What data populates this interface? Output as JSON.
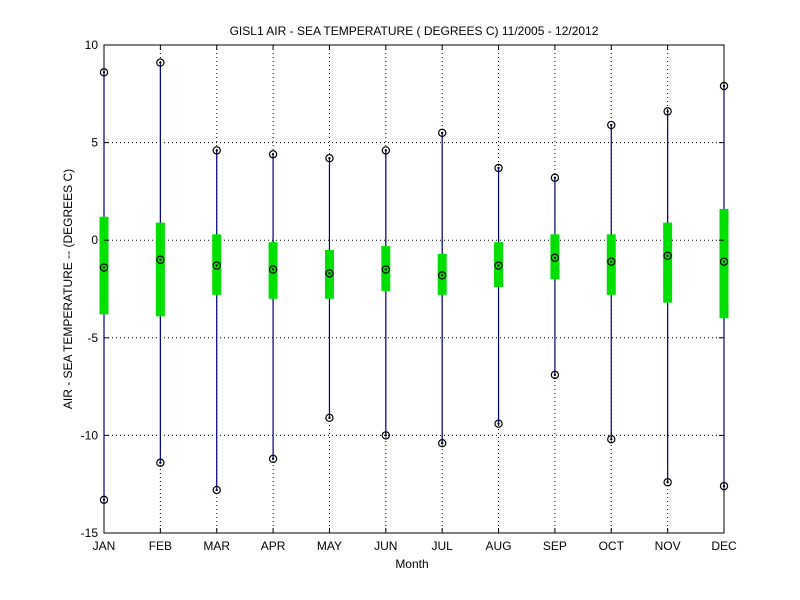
{
  "chart_data": {
    "type": "box",
    "title": "GISL1  AIR - SEA TEMPERATURE ( DEGREES C) 11/2005 - 12/2012",
    "xlabel": "Month",
    "ylabel": "AIR - SEA TEMPERATURE -- (DEGREES C)",
    "ylim": [
      -15,
      10
    ],
    "yticks": [
      "10",
      "5",
      "0",
      "-5",
      "-10",
      "-15"
    ],
    "ytick_values": [
      10,
      5,
      0,
      -5,
      -10,
      -15
    ],
    "grid": true,
    "categories": [
      "JAN",
      "FEB",
      "MAR",
      "APR",
      "MAY",
      "JUN",
      "JUL",
      "AUG",
      "SEP",
      "OCT",
      "NOV",
      "DEC"
    ],
    "series": [
      {
        "min": -13.3,
        "q1": -3.8,
        "median": -1.4,
        "q3": 1.2,
        "max": 8.6
      },
      {
        "min": -11.4,
        "q1": -3.9,
        "median": -1.0,
        "q3": 0.9,
        "max": 9.1
      },
      {
        "min": -12.8,
        "q1": -2.8,
        "median": -1.3,
        "q3": 0.3,
        "max": 4.6
      },
      {
        "min": -11.2,
        "q1": -3.0,
        "median": -1.5,
        "q3": -0.1,
        "max": 4.4
      },
      {
        "min": -9.1,
        "q1": -3.0,
        "median": -1.7,
        "q3": -0.5,
        "max": 4.2
      },
      {
        "min": -10.0,
        "q1": -2.6,
        "median": -1.5,
        "q3": -0.3,
        "max": 4.6
      },
      {
        "min": -10.4,
        "q1": -2.8,
        "median": -1.8,
        "q3": -0.7,
        "max": 5.5
      },
      {
        "min": -9.4,
        "q1": -2.4,
        "median": -1.3,
        "q3": -0.1,
        "max": 3.7
      },
      {
        "min": -6.9,
        "q1": -2.0,
        "median": -0.9,
        "q3": 0.3,
        "max": 3.2
      },
      {
        "min": -10.2,
        "q1": -2.8,
        "median": -1.1,
        "q3": 0.3,
        "max": 5.9
      },
      {
        "min": -12.4,
        "q1": -3.2,
        "median": -0.8,
        "q3": 0.9,
        "max": 6.6
      },
      {
        "min": -12.6,
        "q1": -4.0,
        "median": -1.1,
        "q3": 1.6,
        "max": 7.9
      }
    ],
    "colors": {
      "whisker": "#00007f",
      "box": "#00e000",
      "marker": "#000000",
      "grid": "#000000",
      "axis": "#000000"
    }
  }
}
